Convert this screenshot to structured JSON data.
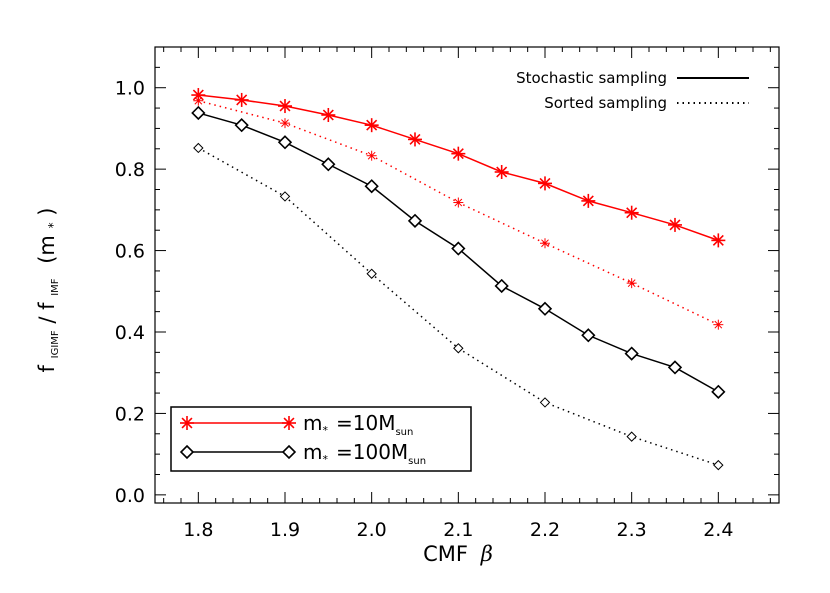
{
  "chart_data": {
    "type": "line",
    "xlabel": "CMF",
    "xlabel_symbol": "β",
    "ylabel": {
      "f1": "f",
      "sub1": "IGIMF",
      "slash": "/",
      "f2": "f",
      "sub2": "IMF",
      "arg": "(m",
      "arg_sub": "*",
      "arg_close": ")"
    },
    "xlim": [
      1.75,
      2.47
    ],
    "ylim": [
      -0.02,
      1.1
    ],
    "xticks": [
      1.8,
      1.9,
      2.0,
      2.1,
      2.2,
      2.3,
      2.4
    ],
    "xtick_labels": [
      "1.8",
      "1.9",
      "2.0",
      "2.1",
      "2.2",
      "2.3",
      "2.4"
    ],
    "yticks": [
      0.0,
      0.2,
      0.4,
      0.6,
      0.8,
      1.0
    ],
    "ytick_labels": [
      "0.0",
      "0.2",
      "0.4",
      "0.6",
      "0.8",
      "1.0"
    ],
    "series": [
      {
        "name": "m* =10Msun, Stochastic sampling",
        "color": "#ff0000",
        "linestyle": "solid",
        "marker": "asterisk",
        "x": [
          1.8,
          1.85,
          1.9,
          1.95,
          2.0,
          2.05,
          2.1,
          2.15,
          2.2,
          2.25,
          2.3,
          2.35,
          2.4
        ],
        "y": [
          0.982,
          0.97,
          0.955,
          0.933,
          0.908,
          0.873,
          0.838,
          0.793,
          0.765,
          0.722,
          0.693,
          0.663,
          0.625
        ]
      },
      {
        "name": "m* =10Msun, Sorted sampling",
        "color": "#ff0000",
        "linestyle": "dotted",
        "marker": "asterisk-small",
        "x": [
          1.8,
          1.9,
          2.0,
          2.1,
          2.2,
          2.3,
          2.4
        ],
        "y": [
          0.968,
          0.913,
          0.833,
          0.718,
          0.618,
          0.52,
          0.418
        ]
      },
      {
        "name": "m* =100Msun, Stochastic sampling",
        "color": "#000000",
        "linestyle": "solid",
        "marker": "diamond",
        "x": [
          1.8,
          1.85,
          1.9,
          1.95,
          2.0,
          2.05,
          2.1,
          2.15,
          2.2,
          2.25,
          2.3,
          2.35,
          2.4
        ],
        "y": [
          0.938,
          0.908,
          0.866,
          0.812,
          0.758,
          0.673,
          0.605,
          0.513,
          0.457,
          0.392,
          0.347,
          0.313,
          0.253
        ]
      },
      {
        "name": "m* =100Msun, Sorted sampling",
        "color": "#000000",
        "linestyle": "dotted",
        "marker": "diamond-small",
        "x": [
          1.8,
          1.9,
          2.0,
          2.1,
          2.2,
          2.3,
          2.4
        ],
        "y": [
          0.852,
          0.733,
          0.543,
          0.36,
          0.227,
          0.143,
          0.073
        ]
      }
    ],
    "legend_linestyle": {
      "position": "top-right",
      "entries": [
        {
          "label": "Stochastic sampling",
          "style": "solid"
        },
        {
          "label": "Sorted sampling",
          "style": "dotted"
        }
      ]
    },
    "legend_mass": {
      "position": "bottom-left",
      "entries": [
        {
          "m": "m",
          "m_sub": "*",
          "eq": "=10M",
          "sub": "sun",
          "color": "#ff0000",
          "marker": "asterisk"
        },
        {
          "m": "m",
          "m_sub": "*",
          "eq": "=100M",
          "sub": "sun",
          "color": "#000000",
          "marker": "diamond"
        }
      ]
    }
  }
}
